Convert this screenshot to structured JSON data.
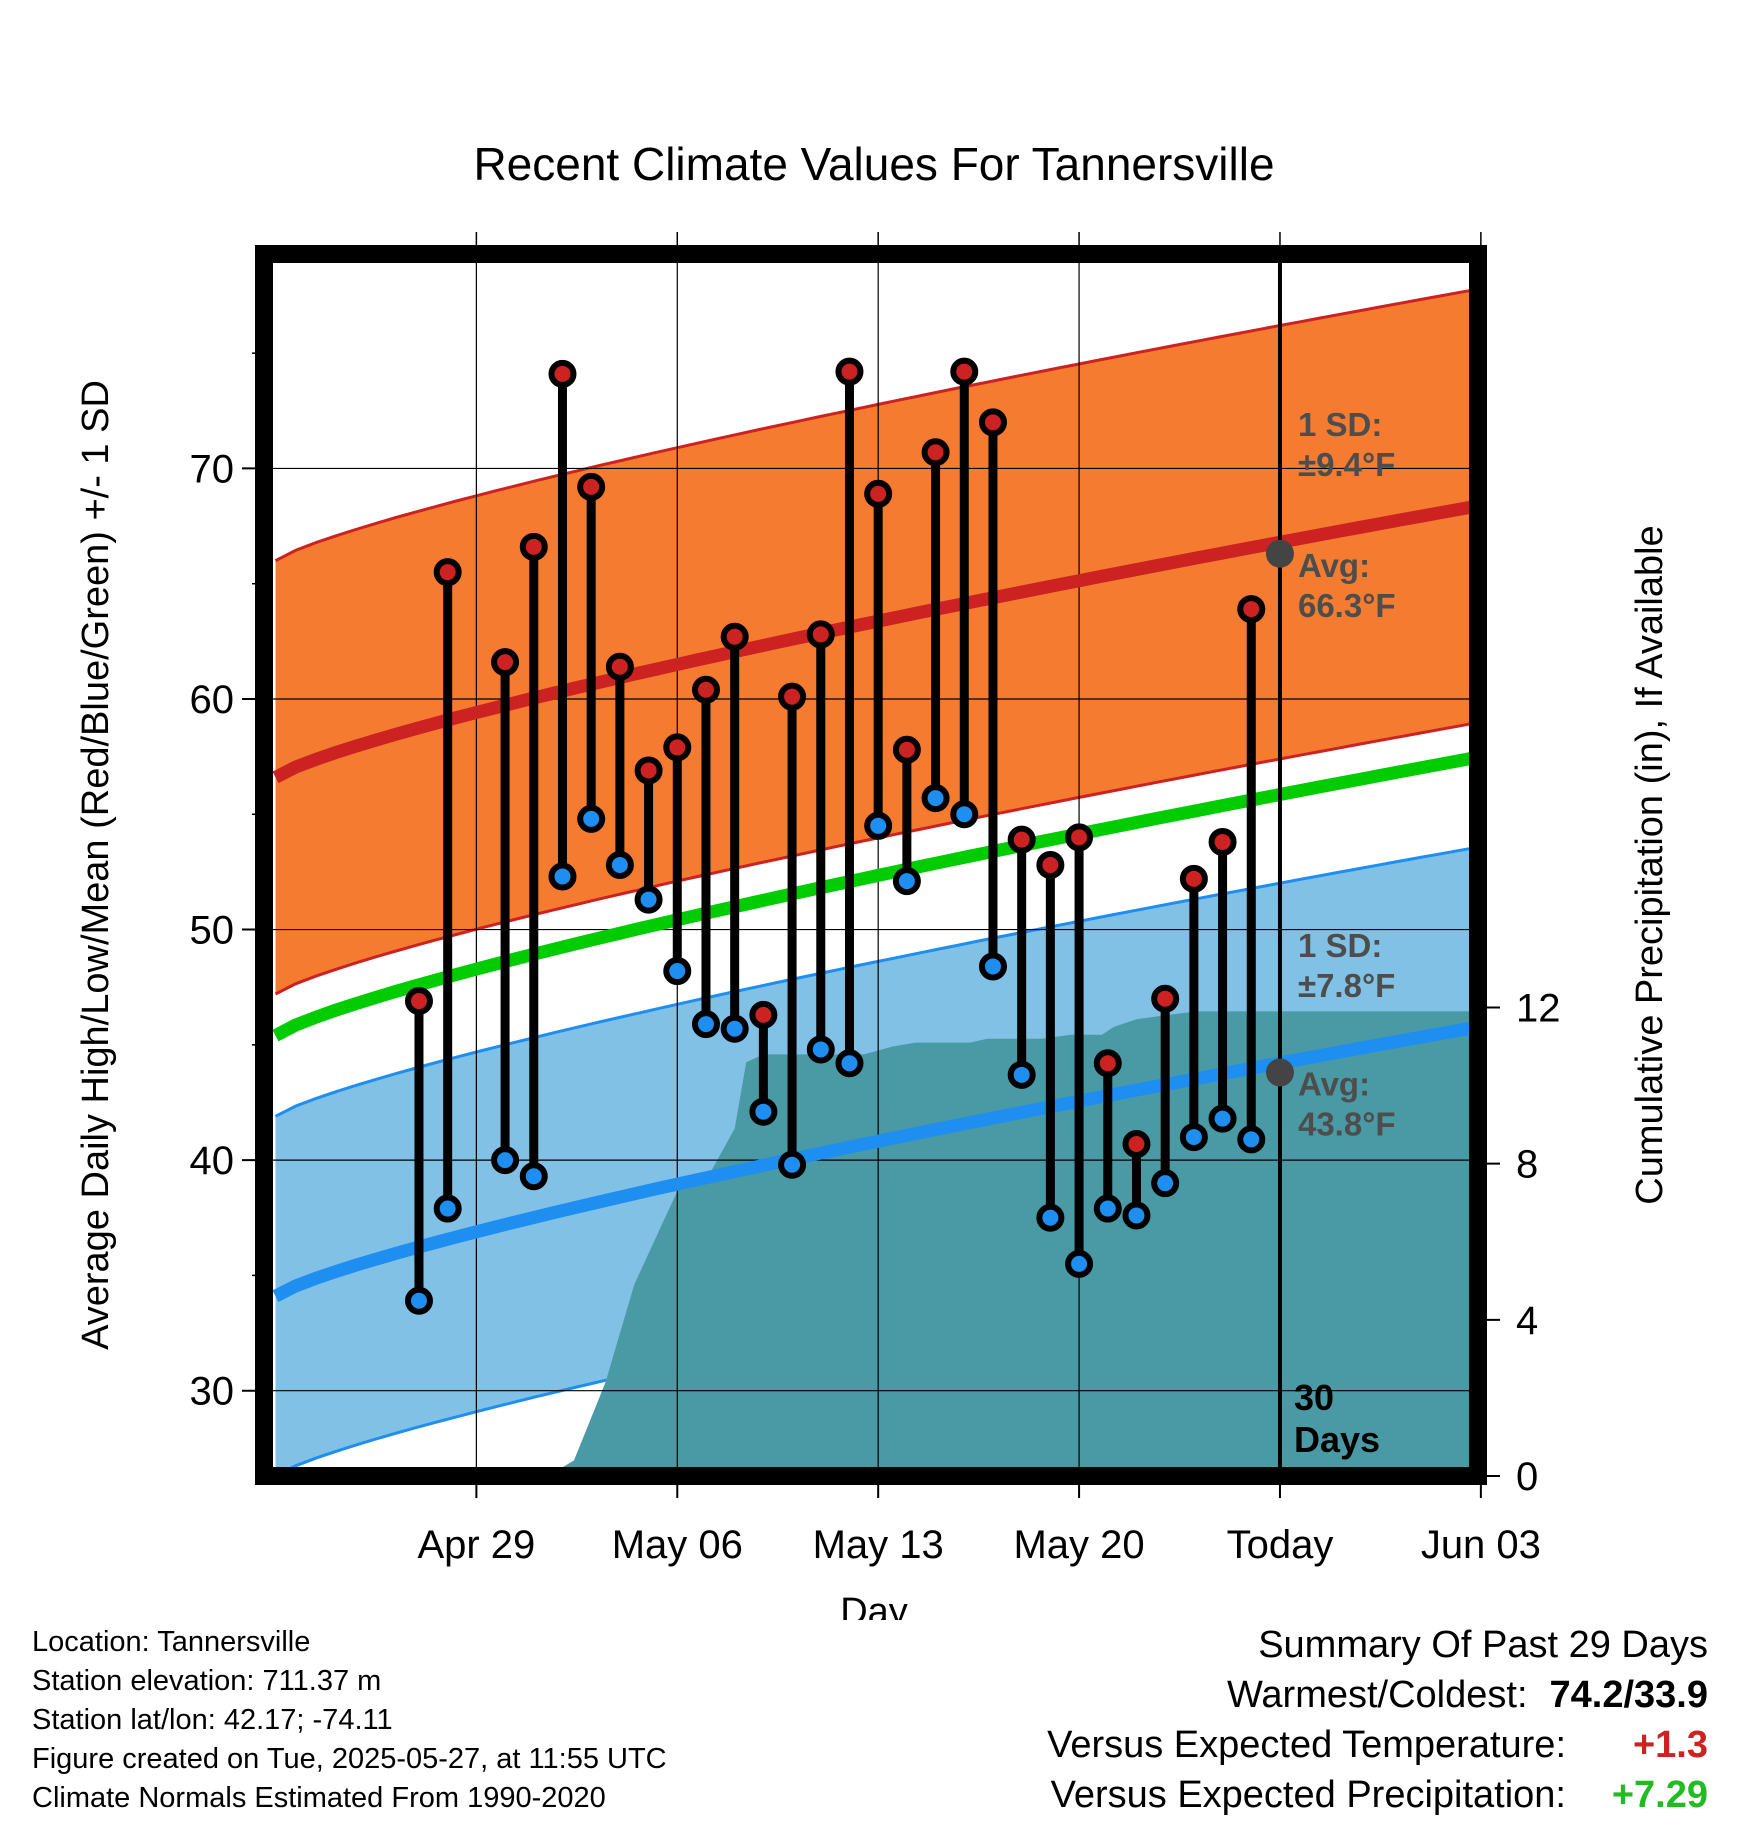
{
  "chart_data": {
    "type": "line",
    "title": "Recent Climate Values For Tannersville",
    "xlabel": "Day",
    "ylabel": "Average Daily High/Low/Mean (Red/Blue/Green) +/- 1 SD",
    "ylabel_right": "Cumulative Precipitation (in), If Available",
    "ylim": [
      26.3,
      79.3
    ],
    "ylim_right": [
      0,
      31.3
    ],
    "xlim_days": [
      -35.4,
      6.9
    ],
    "y_ticks": [
      "30",
      "40",
      "50",
      "60",
      "70"
    ],
    "y_ticks_right": [
      "0",
      "4",
      "8",
      "12"
    ],
    "x_ticks": [
      {
        "label": "Apr 29",
        "day": -28
      },
      {
        "label": "May 06",
        "day": -21
      },
      {
        "label": "May 13",
        "day": -14
      },
      {
        "label": "May 20",
        "day": -7
      },
      {
        "label": "Today",
        "day": 0
      },
      {
        "label": "Jun 03",
        "day": 7
      }
    ],
    "today_line": {
      "label": "30 Days"
    },
    "normals": {
      "avg_high": {
        "start": 56.6,
        "end": 68.4,
        "sd": 9.4,
        "color": "#cc2222",
        "band_color": "#f47b30"
      },
      "avg_low": {
        "start": 34.1,
        "end": 45.8,
        "sd": 7.8,
        "color": "#1e8ef0",
        "band_color": "#82c1e6"
      },
      "avg_mean": {
        "start": 45.4,
        "end": 57.5,
        "color": "#00cc00"
      }
    },
    "annotations": [
      {
        "line1": "1 SD:",
        "line2": "±9.4°F",
        "anchor_y": 71.4
      },
      {
        "line1": "Avg:",
        "line2": "66.3°F",
        "anchor_y": 65.3
      },
      {
        "line1": "1 SD:",
        "line2": "±7.8°F",
        "anchor_y": 48.8
      },
      {
        "line1": "Avg:",
        "line2": "43.8°F",
        "anchor_y": 42.8
      }
    ],
    "today_markers": [
      66.3,
      43.8
    ],
    "series": [
      {
        "name": "High",
        "color": "#cc2222",
        "x": [
          -30,
          -29,
          -27,
          -26,
          -25,
          -24,
          -23,
          -22,
          -21,
          -20,
          -19,
          -18,
          -17,
          -16,
          -15,
          -14,
          -13,
          -12,
          -11,
          -10,
          -9,
          -8,
          -7,
          -6,
          -5,
          -4,
          -3,
          -2,
          -1
        ],
        "values": [
          46.9,
          65.5,
          61.6,
          66.6,
          74.1,
          69.2,
          61.4,
          56.9,
          57.9,
          60.4,
          62.7,
          46.3,
          60.1,
          62.8,
          74.2,
          68.9,
          57.8,
          70.7,
          74.2,
          72.0,
          53.9,
          52.8,
          54.0,
          44.2,
          40.7,
          47.0,
          52.2,
          53.8,
          63.9
        ]
      },
      {
        "name": "Low",
        "color": "#1e8ef0",
        "x": [
          -30,
          -29,
          -27,
          -26,
          -25,
          -24,
          -23,
          -22,
          -21,
          -20,
          -19,
          -18,
          -17,
          -16,
          -15,
          -14,
          -13,
          -12,
          -11,
          -10,
          -9,
          -8,
          -7,
          -6,
          -5,
          -4,
          -3,
          -2,
          -1
        ],
        "values": [
          33.9,
          37.9,
          40.0,
          39.3,
          52.3,
          54.8,
          52.8,
          51.3,
          48.2,
          45.9,
          45.7,
          42.1,
          39.8,
          44.8,
          44.2,
          54.5,
          52.1,
          55.7,
          55.0,
          48.4,
          43.7,
          37.5,
          35.5,
          37.9,
          37.6,
          39.0,
          41.0,
          41.8,
          40.9
        ]
      },
      {
        "name": "Cumulative Precipitation",
        "color": "#4a9aa5",
        "x": [
          -30.9,
          -25.5,
          -24.6,
          -23.5,
          -22.5,
          -21.5,
          -20.8,
          -19.9,
          -19.0,
          -18.6,
          -18.0,
          -17.0,
          -16.0,
          -15.0,
          -14.5,
          -13.5,
          -12.7,
          -11.8,
          -10.8,
          -10.2,
          -9.2,
          -8.3,
          -7.3,
          -6.2,
          -5.8,
          -5.0,
          -4.0,
          -2.9,
          0.0,
          6.9
        ],
        "values": [
          0.0,
          0.0,
          0.4,
          2.4,
          4.9,
          6.5,
          7.6,
          7.7,
          8.9,
          10.6,
          10.8,
          10.8,
          10.8,
          10.8,
          10.8,
          11.0,
          11.1,
          11.1,
          11.1,
          11.2,
          11.2,
          11.2,
          11.3,
          11.3,
          11.5,
          11.7,
          11.8,
          11.9,
          11.9,
          11.9
        ]
      }
    ]
  },
  "info": {
    "location": "Location: Tannersville",
    "elevation": "Station elevation: 711.37 m",
    "latlon": "Station lat/lon: 42.17; -74.11",
    "created": "Figure created on Tue, 2025-05-27, at 11:55 UTC",
    "normals": "Climate Normals Estimated From 1990-2020"
  },
  "summary": {
    "heading": "Summary Of Past 29 Days",
    "warm_cold_label": "Warmest/Coldest:",
    "warm_cold_value": "74.2/33.9",
    "temp_label": "Versus Expected Temperature:",
    "temp_value": "+1.3",
    "temp_color": "#cc2222",
    "precip_label": "Versus Expected Precipitation:",
    "precip_value": "+7.29",
    "precip_color": "#22bb22"
  }
}
